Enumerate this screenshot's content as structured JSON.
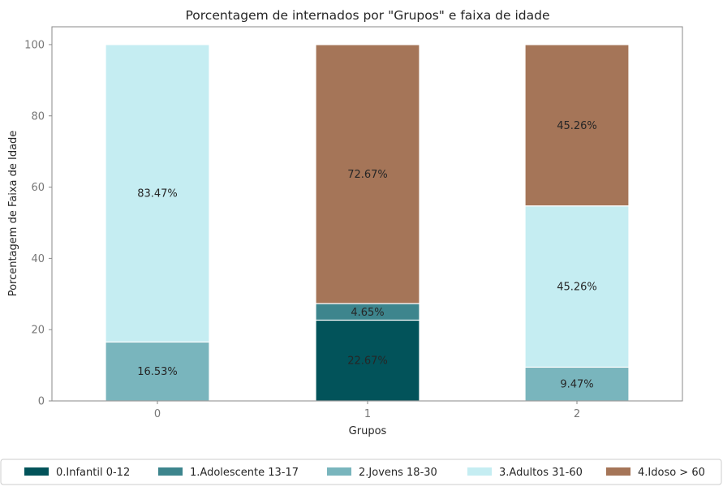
{
  "chart_data": {
    "type": "bar",
    "stacked": true,
    "title": "Porcentagem de internados por \"Grupos\" e faixa de idade",
    "xlabel": "Grupos",
    "ylabel": "Porcentagem de Faixa de Idade",
    "categories": [
      "0",
      "1",
      "2"
    ],
    "ylim": [
      0,
      105
    ],
    "yticks": [
      0,
      20,
      40,
      60,
      80,
      100
    ],
    "grid": false,
    "legend_position": "bottom",
    "series": [
      {
        "name": "0.Infantil 0-12",
        "color": "#02535a",
        "values": [
          0,
          22.67,
          0
        ],
        "labels": [
          "",
          "22.67%",
          ""
        ]
      },
      {
        "name": "1.Adolescente 13-17",
        "color": "#3d858d",
        "values": [
          0,
          4.65,
          0
        ],
        "labels": [
          "",
          "4.65%",
          ""
        ]
      },
      {
        "name": "2.Jovens 18-30",
        "color": "#79b5bd",
        "values": [
          16.53,
          0,
          9.47
        ],
        "labels": [
          "16.53%",
          "",
          "9.47%"
        ]
      },
      {
        "name": "3.Adultos 31-60",
        "color": "#c5edf2",
        "values": [
          83.47,
          0,
          45.26
        ],
        "labels": [
          "83.47%",
          "",
          "45.26%"
        ]
      },
      {
        "name": "4.Idoso > 60",
        "color": "#a57558",
        "values": [
          0,
          72.67,
          45.26
        ],
        "labels": [
          "",
          "72.67%",
          "45.26%"
        ]
      }
    ]
  }
}
